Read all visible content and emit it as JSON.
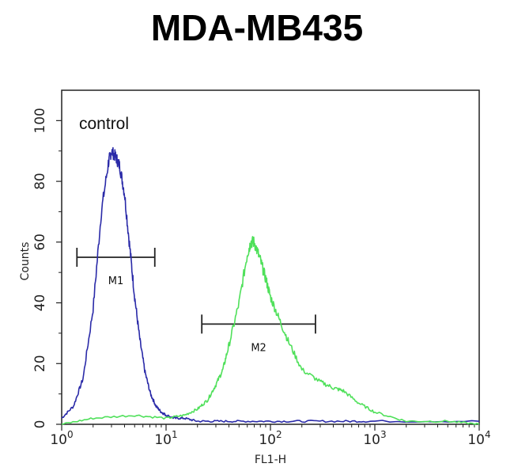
{
  "chart_data": {
    "type": "line",
    "title": "MDA-MB435",
    "xlabel": "FL1-H",
    "ylabel": "Counts",
    "xscale": "log",
    "xlim": [
      1,
      10000
    ],
    "ylim": [
      0,
      110
    ],
    "x_ticks": [
      {
        "value": 1,
        "base": "10",
        "exp": "0"
      },
      {
        "value": 10,
        "base": "10",
        "exp": "1"
      },
      {
        "value": 100,
        "base": "10",
        "exp": "2"
      },
      {
        "value": 1000,
        "base": "10",
        "exp": "3"
      },
      {
        "value": 10000,
        "base": "10",
        "exp": "4"
      }
    ],
    "y_ticks": [
      0,
      20,
      40,
      60,
      80,
      100
    ],
    "annotation": "control",
    "colors": {
      "control": "#2a2aa8",
      "sample": "#4fe05a"
    },
    "series": [
      {
        "key": "control",
        "color": "#2a2aa8",
        "x": [
          1,
          1.3,
          1.6,
          2.0,
          2.4,
          2.8,
          3.0,
          3.3,
          3.6,
          4.0,
          4.5,
          5.0,
          5.6,
          6.3,
          7.1,
          8.0,
          9,
          10,
          12,
          15,
          20,
          30,
          50,
          100,
          200,
          500,
          1000,
          10000
        ],
        "y": [
          2,
          6,
          15,
          38,
          70,
          86,
          90,
          88,
          85,
          76,
          58,
          42,
          28,
          17,
          10,
          6,
          4,
          3,
          2,
          2,
          1,
          1,
          1,
          1,
          1,
          1,
          1,
          1
        ]
      },
      {
        "key": "sample",
        "color": "#4fe05a",
        "x": [
          1,
          2,
          5,
          10,
          15,
          20,
          25,
          30,
          35,
          40,
          50,
          60,
          65,
          70,
          80,
          90,
          100,
          120,
          150,
          200,
          300,
          400,
          500,
          700,
          1000,
          2000,
          5000,
          10000
        ],
        "y": [
          0,
          2,
          3,
          2,
          3,
          5,
          8,
          13,
          18,
          26,
          40,
          56,
          60,
          60,
          54,
          48,
          42,
          35,
          27,
          18,
          14,
          12,
          11,
          7,
          4,
          1,
          1,
          0
        ]
      }
    ],
    "markers": [
      {
        "label": "M1",
        "x_start": 1.4,
        "x_end": 7.8,
        "y": 55
      },
      {
        "label": "M2",
        "x_start": 22,
        "x_end": 270,
        "y": 33
      }
    ]
  }
}
